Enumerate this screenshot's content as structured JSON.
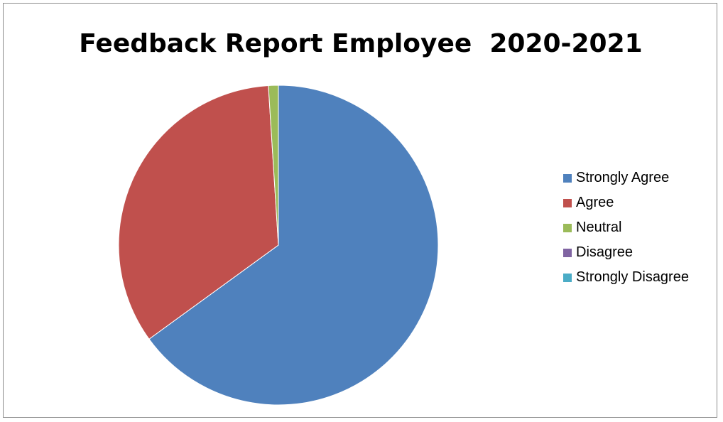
{
  "chart_data": {
    "type": "pie",
    "title": "Feedback Report Employee  2020-2021",
    "categories": [
      "Strongly Agree",
      "Agree",
      "Neutral",
      "Disagree",
      "Strongly Disagree"
    ],
    "values": [
      65,
      34,
      1,
      0,
      0
    ],
    "colors": [
      "#4f81bd",
      "#c0504d",
      "#9bbb59",
      "#8064a2",
      "#4bacc6"
    ],
    "legend_position": "right"
  }
}
